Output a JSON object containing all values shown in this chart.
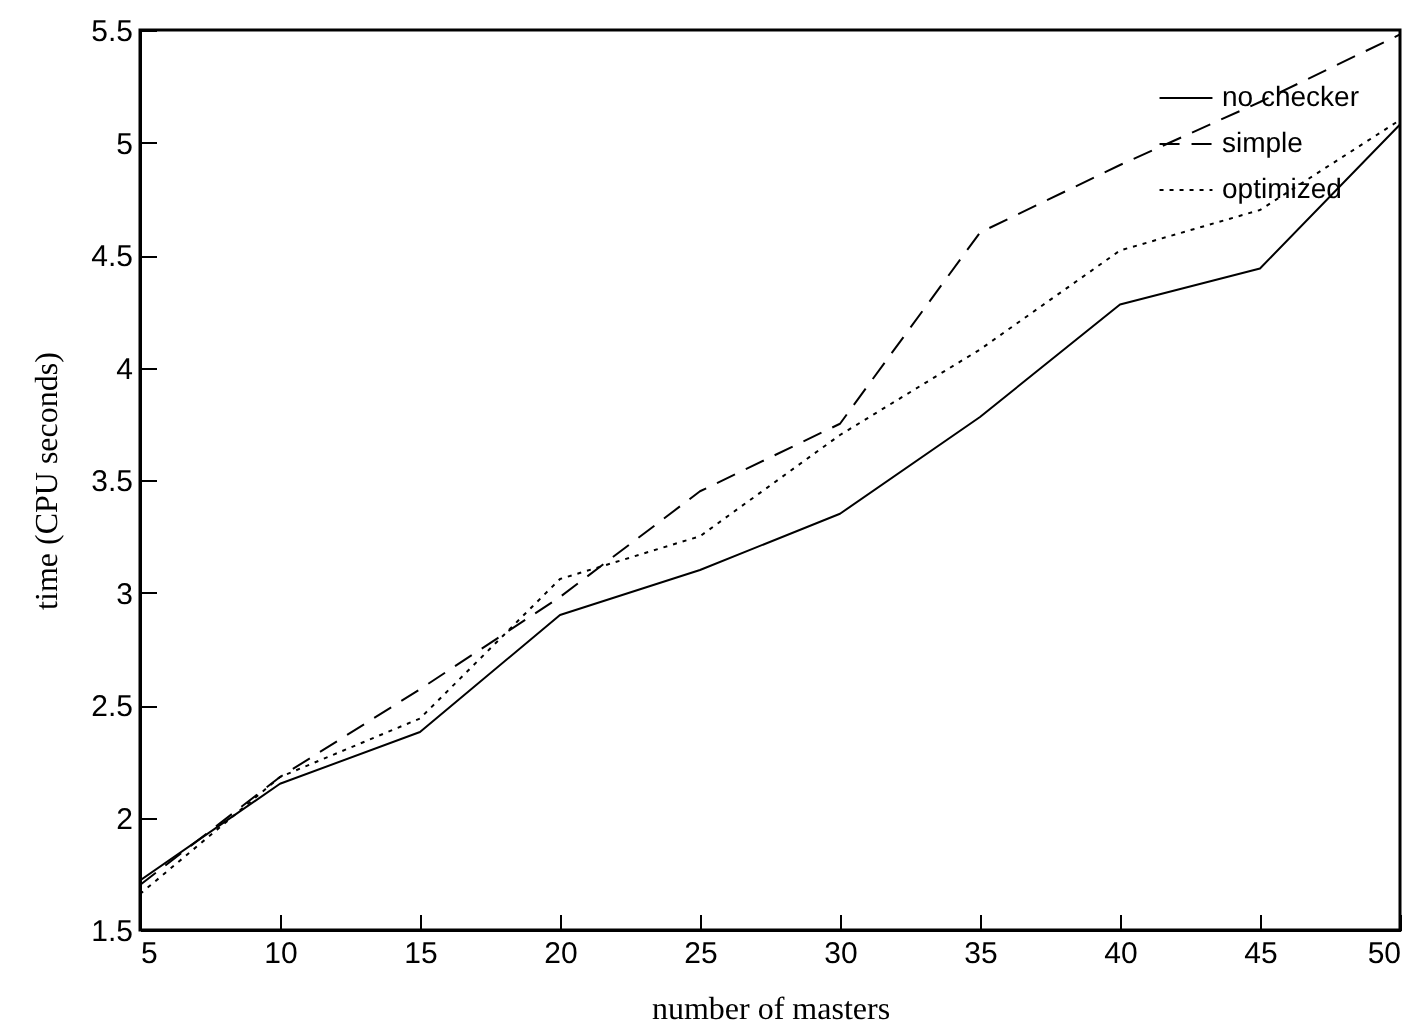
{
  "chart_data": {
    "type": "line",
    "xlabel": "number of masters",
    "ylabel": "time (CPU seconds)",
    "x": [
      5,
      10,
      15,
      20,
      25,
      30,
      35,
      40,
      45,
      50
    ],
    "series": [
      {
        "name": "no checker",
        "color": "#000000",
        "line_style": "solid",
        "values": [
          1.72,
          2.15,
          2.38,
          2.9,
          3.1,
          3.35,
          3.78,
          4.28,
          4.44,
          5.08
        ]
      },
      {
        "name": "simple",
        "color": "#000000",
        "line_style": "dashed",
        "values": [
          1.7,
          2.18,
          2.57,
          2.98,
          3.45,
          3.75,
          4.6,
          4.9,
          5.18,
          5.48
        ]
      },
      {
        "name": "optimized",
        "color": "#000000",
        "line_style": "dotted",
        "values": [
          1.66,
          2.18,
          2.44,
          3.06,
          3.25,
          3.7,
          4.08,
          4.52,
          4.7,
          5.1
        ]
      }
    ],
    "xlim": [
      5,
      50
    ],
    "xticks": [
      5,
      10,
      15,
      20,
      25,
      30,
      35,
      40,
      45,
      50
    ],
    "ylim": [
      1.5,
      5.5
    ],
    "yticks": [
      1.5,
      2,
      2.5,
      3,
      3.5,
      4,
      4.5,
      5,
      5.5
    ],
    "grid": false,
    "legend": "top right",
    "marker": "none"
  }
}
